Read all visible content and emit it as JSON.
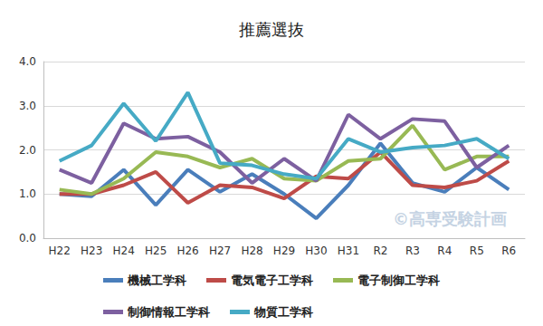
{
  "chart_data": {
    "type": "line",
    "title": "推薦選抜",
    "annotations": [
      "©高専受験計画"
    ],
    "categories": [
      "H22",
      "H23",
      "H24",
      "H25",
      "H26",
      "H27",
      "H28",
      "H29",
      "H30",
      "H31",
      "R2",
      "R3",
      "R4",
      "R5",
      "R6"
    ],
    "series": [
      {
        "name": "機械工学科",
        "color": "#4a7ebb",
        "values": [
          1.0,
          0.95,
          1.55,
          0.75,
          1.55,
          1.05,
          1.45,
          1.0,
          0.45,
          1.2,
          2.15,
          1.25,
          1.05,
          1.6,
          1.1
        ]
      },
      {
        "name": "電気電子工学科",
        "color": "#be4b48",
        "values": [
          1.0,
          1.0,
          1.2,
          1.5,
          0.8,
          1.2,
          1.15,
          0.9,
          1.4,
          1.35,
          1.95,
          1.2,
          1.15,
          1.3,
          1.75
        ]
      },
      {
        "name": "電子制御工学科",
        "color": "#98b954",
        "values": [
          1.1,
          1.0,
          1.35,
          1.95,
          1.85,
          1.6,
          1.8,
          1.35,
          1.3,
          1.75,
          1.8,
          2.55,
          1.55,
          1.85,
          1.85
        ]
      },
      {
        "name": "制御情報工学科",
        "color": "#7d60a0",
        "values": [
          1.55,
          1.25,
          2.6,
          2.25,
          2.3,
          1.95,
          1.25,
          1.8,
          1.3,
          2.8,
          2.25,
          2.7,
          2.65,
          1.6,
          2.1
        ]
      },
      {
        "name": "物質工学科",
        "color": "#46aac5",
        "values": [
          1.75,
          2.1,
          3.05,
          2.2,
          3.3,
          1.7,
          1.65,
          1.45,
          1.35,
          2.25,
          1.95,
          2.05,
          2.1,
          2.25,
          1.8
        ]
      }
    ],
    "ylim": [
      0,
      4
    ],
    "yticks": [
      {
        "value": 0,
        "label": "0.0"
      },
      {
        "value": 1,
        "label": "1.0"
      },
      {
        "value": 2,
        "label": "2.0"
      },
      {
        "value": 3,
        "label": "3.0"
      },
      {
        "value": 4,
        "label": "4.0"
      }
    ],
    "grid": true,
    "legend": "bottom",
    "line_style": "solid"
  }
}
